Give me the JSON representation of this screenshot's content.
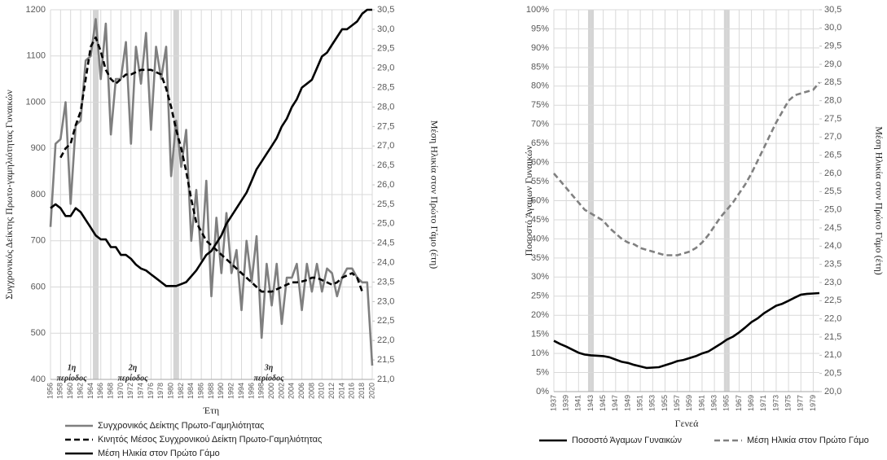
{
  "chart_data": [
    {
      "type": "line",
      "x_label": "Έτη",
      "y_label": "Συγχρονικός Δείκτης Πρωτο-γαμηλιότητας Γυναικών",
      "y2_label": "Μέση Ηλικία στον Πρώτο Γάμο (έτη)",
      "x": [
        1956,
        1957,
        1958,
        1959,
        1960,
        1961,
        1962,
        1963,
        1964,
        1965,
        1966,
        1967,
        1968,
        1969,
        1970,
        1971,
        1972,
        1973,
        1974,
        1975,
        1976,
        1977,
        1978,
        1979,
        1980,
        1981,
        1982,
        1983,
        1984,
        1985,
        1986,
        1987,
        1988,
        1989,
        1990,
        1991,
        1992,
        1993,
        1994,
        1995,
        1996,
        1997,
        1998,
        1999,
        2000,
        2001,
        2002,
        2003,
        2004,
        2005,
        2006,
        2007,
        2008,
        2009,
        2010,
        2011,
        2012,
        2013,
        2014,
        2015,
        2016,
        2017,
        2018,
        2019,
        2020
      ],
      "xlim": [
        1956,
        2020
      ],
      "xticks": [
        1956,
        1958,
        1960,
        1962,
        1964,
        1966,
        1968,
        1970,
        1972,
        1974,
        1976,
        1978,
        1980,
        1982,
        1984,
        1986,
        1988,
        1990,
        1992,
        1994,
        1996,
        1998,
        2000,
        2002,
        2004,
        2006,
        2008,
        2010,
        2012,
        2014,
        2016,
        2018,
        2020
      ],
      "ylim": [
        400,
        1200
      ],
      "yticks": [
        400,
        500,
        600,
        700,
        800,
        900,
        1000,
        1100,
        1200
      ],
      "y2lim": [
        21.0,
        30.5
      ],
      "y2ticks": [
        {
          "value": 21.0,
          "label": "21,0"
        },
        {
          "value": 21.5,
          "label": "21,5"
        },
        {
          "value": 22.0,
          "label": "22,0"
        },
        {
          "value": 22.5,
          "label": "22,5"
        },
        {
          "value": 23.0,
          "label": "23,0"
        },
        {
          "value": 23.5,
          "label": "23,5"
        },
        {
          "value": 24.0,
          "label": "24,0"
        },
        {
          "value": 24.5,
          "label": "24,5"
        },
        {
          "value": 25.0,
          "label": "25,0"
        },
        {
          "value": 25.5,
          "label": "25,5"
        },
        {
          "value": 26.0,
          "label": "26,0"
        },
        {
          "value": 26.5,
          "label": "26,5"
        },
        {
          "value": 27.0,
          "label": "27,0"
        },
        {
          "value": 27.5,
          "label": "27,5"
        },
        {
          "value": 28.0,
          "label": "28,0"
        },
        {
          "value": 28.5,
          "label": "28,5"
        },
        {
          "value": 29.0,
          "label": "29,0"
        },
        {
          "value": 29.5,
          "label": "29,5"
        },
        {
          "value": 30.0,
          "label": "30,0"
        },
        {
          "value": 30.5,
          "label": "30,5"
        }
      ],
      "grid": true,
      "highlights": [
        1965,
        1981
      ],
      "legend": "bottom",
      "annotations": [
        [
          "1η",
          "περίοδος"
        ],
        [
          "2η",
          "περίοδος"
        ],
        [
          "3η",
          "περίοδος"
        ]
      ],
      "series": [
        {
          "name": "Συγχρονικός Δείκτης Πρωτο-Γαμηλιότητας",
          "color": "#7f7f7f",
          "dash": false,
          "values": [
            730,
            910,
            920,
            1000,
            780,
            950,
            960,
            1090,
            1100,
            1180,
            1050,
            1170,
            930,
            1050,
            1050,
            1130,
            910,
            1120,
            1040,
            1150,
            940,
            1120,
            1050,
            1120,
            840,
            960,
            860,
            940,
            700,
            810,
            660,
            830,
            580,
            750,
            630,
            760,
            630,
            680,
            550,
            700,
            610,
            710,
            490,
            650,
            560,
            650,
            520,
            620,
            620,
            650,
            550,
            650,
            590,
            650,
            590,
            640,
            630,
            580,
            620,
            640,
            640,
            620,
            610,
            610,
            430
          ]
        },
        {
          "name": "Κινητός Μέσος Συγχρονικού Δείκτη Πρωτο-Γαμηλιότητας",
          "color": "#000000",
          "dash": true,
          "values": [
            null,
            null,
            880,
            900,
            910,
            950,
            980,
            1050,
            1120,
            1140,
            1110,
            1070,
            1050,
            1040,
            1050,
            1060,
            1060,
            1065,
            1070,
            1070,
            1070,
            1065,
            1060,
            1030,
            990,
            940,
            900,
            850,
            790,
            740,
            720,
            700,
            690,
            680,
            670,
            660,
            650,
            640,
            630,
            620,
            610,
            600,
            590,
            590,
            590,
            595,
            600,
            605,
            610,
            610,
            612,
            615,
            620,
            620,
            615,
            610,
            605,
            610,
            620,
            625,
            630,
            620,
            590,
            null,
            null
          ]
        },
        {
          "name": "Μέση Ηλικία στον Πρώτο Γάμο",
          "color": "#000000",
          "dash": false,
          "axis": "y2",
          "values": [
            25.4,
            25.5,
            25.4,
            25.2,
            25.2,
            25.4,
            25.3,
            25.1,
            24.9,
            24.7,
            24.6,
            24.6,
            24.4,
            24.4,
            24.2,
            24.2,
            24.1,
            23.95,
            23.85,
            23.8,
            23.7,
            23.6,
            23.5,
            23.4,
            23.4,
            23.4,
            23.45,
            23.5,
            23.65,
            23.8,
            24.0,
            24.2,
            24.3,
            24.5,
            24.7,
            25.0,
            25.2,
            25.4,
            25.6,
            25.8,
            26.1,
            26.4,
            26.6,
            26.8,
            27.0,
            27.2,
            27.5,
            27.7,
            28.0,
            28.2,
            28.5,
            28.6,
            28.7,
            29.0,
            29.3,
            29.4,
            29.6,
            29.8,
            30.0,
            30.0,
            30.1,
            30.2,
            30.4,
            30.5,
            30.5
          ]
        }
      ]
    },
    {
      "type": "line",
      "x_label": "Γενεά",
      "y_label": "Ποσοστό Άγαμων Γυναικών",
      "y2_label": "Μέση Ηλικία στον Πρώτο Γάμο (έτη)",
      "x": [
        1937,
        1938,
        1939,
        1940,
        1941,
        1942,
        1943,
        1944,
        1945,
        1946,
        1947,
        1948,
        1949,
        1950,
        1951,
        1952,
        1953,
        1954,
        1955,
        1956,
        1957,
        1958,
        1959,
        1960,
        1961,
        1962,
        1963,
        1964,
        1965,
        1966,
        1967,
        1968,
        1969,
        1970,
        1971,
        1972,
        1973,
        1974,
        1975,
        1976,
        1977,
        1978,
        1979,
        1980
      ],
      "xlim": [
        1937,
        1980
      ],
      "xticks": [
        1937,
        1939,
        1941,
        1943,
        1945,
        1947,
        1949,
        1951,
        1953,
        1955,
        1957,
        1959,
        1961,
        1963,
        1965,
        1967,
        1969,
        1971,
        1973,
        1975,
        1977,
        1979
      ],
      "ylim": [
        0,
        100
      ],
      "yticks": [
        {
          "value": 0,
          "label": "0%"
        },
        {
          "value": 5,
          "label": "5%"
        },
        {
          "value": 10,
          "label": "10%"
        },
        {
          "value": 15,
          "label": "15%"
        },
        {
          "value": 20,
          "label": "20%"
        },
        {
          "value": 25,
          "label": "25%"
        },
        {
          "value": 30,
          "label": "30%"
        },
        {
          "value": 35,
          "label": "35%"
        },
        {
          "value": 40,
          "label": "40%"
        },
        {
          "value": 45,
          "label": "45%"
        },
        {
          "value": 50,
          "label": "50%"
        },
        {
          "value": 55,
          "label": "55%"
        },
        {
          "value": 60,
          "label": "60%"
        },
        {
          "value": 65,
          "label": "65%"
        },
        {
          "value": 70,
          "label": "70%"
        },
        {
          "value": 75,
          "label": "75%"
        },
        {
          "value": 80,
          "label": "80%"
        },
        {
          "value": 85,
          "label": "85%"
        },
        {
          "value": 90,
          "label": "90%"
        },
        {
          "value": 95,
          "label": "95%"
        },
        {
          "value": 100,
          "label": "100%"
        }
      ],
      "y2lim": [
        20.0,
        30.5
      ],
      "y2ticks": [
        {
          "value": 20.0,
          "label": "20,0"
        },
        {
          "value": 20.5,
          "label": "20,5"
        },
        {
          "value": 21.0,
          "label": "21,0"
        },
        {
          "value": 21.5,
          "label": "21,5"
        },
        {
          "value": 22.0,
          "label": "22,0"
        },
        {
          "value": 22.5,
          "label": "22,5"
        },
        {
          "value": 23.0,
          "label": "23,0"
        },
        {
          "value": 23.5,
          "label": "23,5"
        },
        {
          "value": 24.0,
          "label": "24,0"
        },
        {
          "value": 24.5,
          "label": "24,5"
        },
        {
          "value": 25.0,
          "label": "25,0"
        },
        {
          "value": 25.5,
          "label": "25,5"
        },
        {
          "value": 26.0,
          "label": "26,0"
        },
        {
          "value": 26.5,
          "label": "26,5"
        },
        {
          "value": 27.0,
          "label": "27,0"
        },
        {
          "value": 27.5,
          "label": "27,5"
        },
        {
          "value": 28.0,
          "label": "28,0"
        },
        {
          "value": 28.5,
          "label": "28,5"
        },
        {
          "value": 29.0,
          "label": "29,0"
        },
        {
          "value": 29.5,
          "label": "29,5"
        },
        {
          "value": 30.0,
          "label": "30,0"
        },
        {
          "value": 30.5,
          "label": "30,5"
        }
      ],
      "grid": true,
      "highlights": [
        1943,
        1965
      ],
      "legend": "bottom",
      "series": [
        {
          "name": "Ποσοστό Άγαμων Γυναικών",
          "color": "#000000",
          "dash": false,
          "values": [
            13.3,
            12.5,
            11.8,
            11.0,
            10.2,
            9.7,
            9.5,
            9.4,
            9.3,
            9.0,
            8.4,
            7.8,
            7.5,
            7.0,
            6.6,
            6.2,
            6.3,
            6.4,
            6.9,
            7.4,
            8.0,
            8.3,
            8.8,
            9.3,
            10.0,
            10.5,
            11.5,
            12.5,
            13.6,
            14.4,
            15.5,
            16.8,
            18.2,
            19.2,
            20.5,
            21.5,
            22.5,
            23.0,
            23.8,
            24.6,
            25.4,
            25.6,
            25.7,
            25.8
          ]
        },
        {
          "name": "Μέση Ηλικία στον Πρώτο Γάμο",
          "color": "#808080",
          "dash": true,
          "axis": "y2",
          "values": [
            26.0,
            25.8,
            25.6,
            25.4,
            25.2,
            25.0,
            24.9,
            24.8,
            24.7,
            24.5,
            24.35,
            24.2,
            24.1,
            24.05,
            23.95,
            23.9,
            23.85,
            23.8,
            23.75,
            23.75,
            23.75,
            23.8,
            23.85,
            23.95,
            24.1,
            24.3,
            24.55,
            24.8,
            25.0,
            25.2,
            25.45,
            25.7,
            26.0,
            26.35,
            26.7,
            27.05,
            27.4,
            27.7,
            28.0,
            28.15,
            28.2,
            28.25,
            28.3,
            28.5
          ]
        }
      ]
    }
  ]
}
